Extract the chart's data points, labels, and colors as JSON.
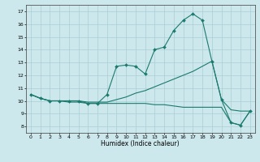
{
  "xlabel": "Humidex (Indice chaleur)",
  "background_color": "#cce8ec",
  "grid_color": "#aacdd4",
  "line_color": "#1a7a6e",
  "x": [
    0,
    1,
    2,
    3,
    4,
    5,
    6,
    7,
    8,
    9,
    10,
    11,
    12,
    13,
    14,
    15,
    16,
    17,
    18,
    19,
    20,
    21,
    22,
    23
  ],
  "y_main": [
    10.5,
    10.2,
    10.0,
    10.0,
    10.0,
    10.0,
    9.8,
    9.8,
    10.5,
    12.7,
    12.8,
    12.7,
    12.1,
    14.0,
    14.2,
    15.5,
    16.3,
    16.8,
    16.3,
    13.1,
    10.1,
    8.3,
    8.1,
    9.2
  ],
  "y_upper": [
    10.5,
    10.2,
    10.0,
    10.0,
    10.0,
    10.0,
    9.9,
    9.9,
    9.9,
    10.1,
    10.3,
    10.6,
    10.8,
    11.1,
    11.4,
    11.7,
    12.0,
    12.3,
    12.7,
    13.1,
    10.1,
    9.3,
    9.2,
    9.2
  ],
  "y_lower": [
    10.5,
    10.2,
    10.0,
    10.0,
    9.9,
    9.9,
    9.8,
    9.8,
    9.8,
    9.8,
    9.8,
    9.8,
    9.8,
    9.7,
    9.7,
    9.6,
    9.5,
    9.5,
    9.5,
    9.5,
    9.5,
    8.3,
    8.1,
    9.2
  ],
  "ylim": [
    7.5,
    17.5
  ],
  "xlim": [
    -0.5,
    23.5
  ],
  "yticks": [
    8,
    9,
    10,
    11,
    12,
    13,
    14,
    15,
    16,
    17
  ],
  "xticks": [
    0,
    1,
    2,
    3,
    4,
    5,
    6,
    7,
    8,
    9,
    10,
    11,
    12,
    13,
    14,
    15,
    16,
    17,
    18,
    19,
    20,
    21,
    22,
    23
  ]
}
